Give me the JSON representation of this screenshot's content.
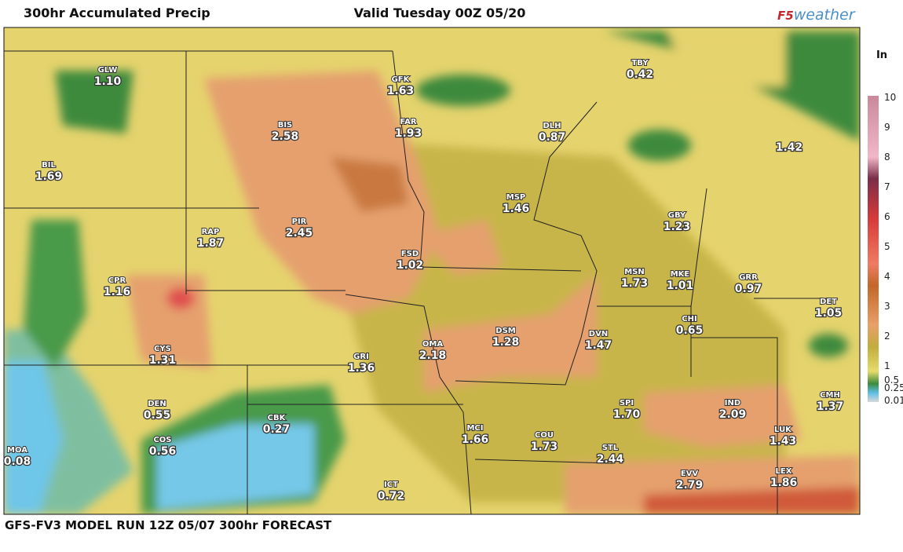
{
  "header": {
    "title": "300hr Accumulated Precip",
    "valid": "Valid Tuesday 00Z 05/20",
    "logo_prefix": "F5",
    "logo_suffix": "weather"
  },
  "footer": "GFS-FV3 MODEL RUN 12Z 05/07 300hr FORECAST",
  "legend": {
    "unit": "In",
    "ticks": [
      "10",
      "9",
      "8",
      "7",
      "6",
      "5",
      "4",
      "3",
      "2",
      "1",
      "0.5",
      "0.25",
      "0.01"
    ]
  },
  "stations": [
    {
      "code": "GLW",
      "value": "1.10"
    },
    {
      "code": "BIL",
      "value": "1.69"
    },
    {
      "code": "GFK",
      "value": "1.63"
    },
    {
      "code": "FAR",
      "value": "1.93"
    },
    {
      "code": "BIS",
      "value": "2.58"
    },
    {
      "code": "TBY",
      "value": "0.42"
    },
    {
      "code": "DLH",
      "value": "0.87"
    },
    {
      "value": "1.42"
    },
    {
      "code": "MSP",
      "value": "1.46"
    },
    {
      "code": "GBY",
      "value": "1.23"
    },
    {
      "code": "RAP",
      "value": "1.87"
    },
    {
      "code": "PIR",
      "value": "2.45"
    },
    {
      "code": "FSD",
      "value": "1.02"
    },
    {
      "code": "MSN",
      "value": "1.73"
    },
    {
      "code": "MKE",
      "value": "1.01"
    },
    {
      "code": "GRR",
      "value": "0.97"
    },
    {
      "code": "CPR",
      "value": "1.16"
    },
    {
      "code": "DET",
      "value": "1.05"
    },
    {
      "code": "CHI",
      "value": "0.65"
    },
    {
      "code": "DSM",
      "value": "1.28"
    },
    {
      "code": "DVN",
      "value": "1.47"
    },
    {
      "code": "OMA",
      "value": "2.18"
    },
    {
      "code": "GRI",
      "value": "1.36"
    },
    {
      "code": "CYS",
      "value": "1.31"
    },
    {
      "code": "IND",
      "value": "2.09"
    },
    {
      "code": "SPI",
      "value": "1.70"
    },
    {
      "code": "CMH",
      "value": "1.37"
    },
    {
      "code": "DEN",
      "value": "0.55"
    },
    {
      "code": "CBK",
      "value": "0.27"
    },
    {
      "code": "MCI",
      "value": "1.66"
    },
    {
      "code": "COU",
      "value": "1.73"
    },
    {
      "code": "LUK",
      "value": "1.43"
    },
    {
      "code": "STL",
      "value": "2.44"
    },
    {
      "code": "COS",
      "value": "0.56"
    },
    {
      "code": "MOA",
      "value": "0.08"
    },
    {
      "code": "EVV",
      "value": "2.79"
    },
    {
      "code": "LEX",
      "value": "1.86"
    },
    {
      "code": "ICT",
      "value": "0.72"
    }
  ]
}
